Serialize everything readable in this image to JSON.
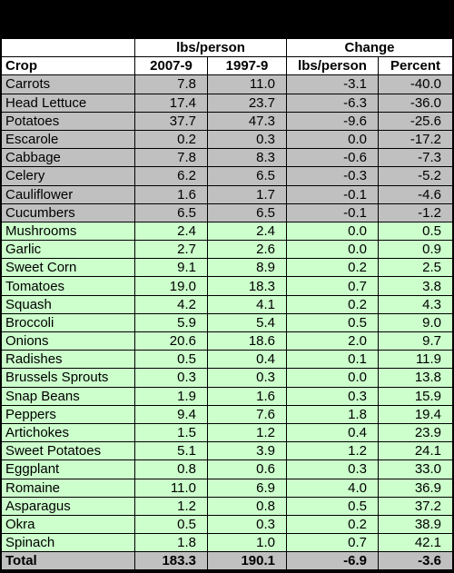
{
  "headers": {
    "group_lbs": "lbs/person",
    "group_change": "Change",
    "crop": "Crop",
    "col_2007": "2007-9",
    "col_1997": "1997-9",
    "col_change_lbs": "lbs/person",
    "col_change_pct": "Percent"
  },
  "colors": {
    "decline_row": "#c0c0c0",
    "increase_row": "#ccffcc",
    "header_row": "#ffffff",
    "border": "#000000"
  },
  "rows": [
    {
      "crop": "Carrots",
      "v2007": "7.8",
      "v1997": "11.0",
      "chg": "-3.1",
      "pct": "-40.0",
      "group": "decline"
    },
    {
      "crop": "Head Lettuce",
      "v2007": "17.4",
      "v1997": "23.7",
      "chg": "-6.3",
      "pct": "-36.0",
      "group": "decline"
    },
    {
      "crop": "Potatoes",
      "v2007": "37.7",
      "v1997": "47.3",
      "chg": "-9.6",
      "pct": "-25.6",
      "group": "decline"
    },
    {
      "crop": "Escarole",
      "v2007": "0.2",
      "v1997": "0.3",
      "chg": "0.0",
      "pct": "-17.2",
      "group": "decline"
    },
    {
      "crop": "Cabbage",
      "v2007": "7.8",
      "v1997": "8.3",
      "chg": "-0.6",
      "pct": "-7.3",
      "group": "decline"
    },
    {
      "crop": "Celery",
      "v2007": "6.2",
      "v1997": "6.5",
      "chg": "-0.3",
      "pct": "-5.2",
      "group": "decline"
    },
    {
      "crop": "Cauliflower",
      "v2007": "1.6",
      "v1997": "1.7",
      "chg": "-0.1",
      "pct": "-4.6",
      "group": "decline"
    },
    {
      "crop": "Cucumbers",
      "v2007": "6.5",
      "v1997": "6.5",
      "chg": "-0.1",
      "pct": "-1.2",
      "group": "decline"
    },
    {
      "crop": "Mushrooms",
      "v2007": "2.4",
      "v1997": "2.4",
      "chg": "0.0",
      "pct": "0.5",
      "group": "increase"
    },
    {
      "crop": "Garlic",
      "v2007": "2.7",
      "v1997": "2.6",
      "chg": "0.0",
      "pct": "0.9",
      "group": "increase"
    },
    {
      "crop": "Sweet Corn",
      "v2007": "9.1",
      "v1997": "8.9",
      "chg": "0.2",
      "pct": "2.5",
      "group": "increase"
    },
    {
      "crop": "Tomatoes",
      "v2007": "19.0",
      "v1997": "18.3",
      "chg": "0.7",
      "pct": "3.8",
      "group": "increase"
    },
    {
      "crop": "Squash",
      "v2007": "4.2",
      "v1997": "4.1",
      "chg": "0.2",
      "pct": "4.3",
      "group": "increase"
    },
    {
      "crop": "Broccoli",
      "v2007": "5.9",
      "v1997": "5.4",
      "chg": "0.5",
      "pct": "9.0",
      "group": "increase"
    },
    {
      "crop": "Onions",
      "v2007": "20.6",
      "v1997": "18.6",
      "chg": "2.0",
      "pct": "9.7",
      "group": "increase"
    },
    {
      "crop": "Radishes",
      "v2007": "0.5",
      "v1997": "0.4",
      "chg": "0.1",
      "pct": "11.9",
      "group": "increase"
    },
    {
      "crop": "Brussels Sprouts",
      "v2007": "0.3",
      "v1997": "0.3",
      "chg": "0.0",
      "pct": "13.8",
      "group": "increase"
    },
    {
      "crop": "Snap Beans",
      "v2007": "1.9",
      "v1997": "1.6",
      "chg": "0.3",
      "pct": "15.9",
      "group": "increase"
    },
    {
      "crop": "Peppers",
      "v2007": "9.4",
      "v1997": "7.6",
      "chg": "1.8",
      "pct": "19.4",
      "group": "increase"
    },
    {
      "crop": "Artichokes",
      "v2007": "1.5",
      "v1997": "1.2",
      "chg": "0.4",
      "pct": "23.9",
      "group": "increase"
    },
    {
      "crop": "Sweet Potatoes",
      "v2007": "5.1",
      "v1997": "3.9",
      "chg": "1.2",
      "pct": "24.1",
      "group": "increase"
    },
    {
      "crop": "Eggplant",
      "v2007": "0.8",
      "v1997": "0.6",
      "chg": "0.3",
      "pct": "33.0",
      "group": "increase"
    },
    {
      "crop": "Romaine",
      "v2007": "11.0",
      "v1997": "6.9",
      "chg": "4.0",
      "pct": "36.9",
      "group": "increase"
    },
    {
      "crop": "Asparagus",
      "v2007": "1.2",
      "v1997": "0.8",
      "chg": "0.5",
      "pct": "37.2",
      "group": "increase"
    },
    {
      "crop": "Okra",
      "v2007": "0.5",
      "v1997": "0.3",
      "chg": "0.2",
      "pct": "38.9",
      "group": "increase"
    },
    {
      "crop": "Spinach",
      "v2007": "1.8",
      "v1997": "1.0",
      "chg": "0.7",
      "pct": "42.1",
      "group": "increase"
    }
  ],
  "total": {
    "crop": "Total",
    "v2007": "183.3",
    "v1997": "190.1",
    "chg": "-6.9",
    "pct": "-3.6"
  }
}
